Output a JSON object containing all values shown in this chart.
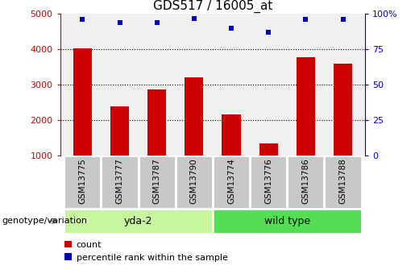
{
  "title": "GDS517 / 16005_at",
  "samples": [
    "GSM13775",
    "GSM13777",
    "GSM13787",
    "GSM13790",
    "GSM13774",
    "GSM13776",
    "GSM13786",
    "GSM13788"
  ],
  "counts": [
    4020,
    2390,
    2870,
    3220,
    2160,
    1340,
    3780,
    3600
  ],
  "percentiles": [
    96,
    94,
    94,
    97,
    90,
    87,
    96,
    96
  ],
  "groups": [
    {
      "label": "yda-2",
      "indices": [
        0,
        3
      ],
      "color": "#c8f5a0"
    },
    {
      "label": "wild type",
      "indices": [
        4,
        7
      ],
      "color": "#55dd55"
    }
  ],
  "bar_color": "#cc0000",
  "dot_color": "#0000bb",
  "ylim_left": [
    1000,
    5000
  ],
  "ylim_right": [
    0,
    100
  ],
  "yticks_left": [
    1000,
    2000,
    3000,
    4000,
    5000
  ],
  "yticks_right": [
    0,
    25,
    50,
    75,
    100
  ],
  "left_axis_color": "#cc0000",
  "right_axis_color": "#0000bb",
  "plot_bg": "#f0f0f0",
  "xlabel_left": "genotype/variation",
  "legend_count": "count",
  "legend_percentile": "percentile rank within the sample",
  "sample_box_color": "#c8c8c8",
  "bar_width": 0.5
}
